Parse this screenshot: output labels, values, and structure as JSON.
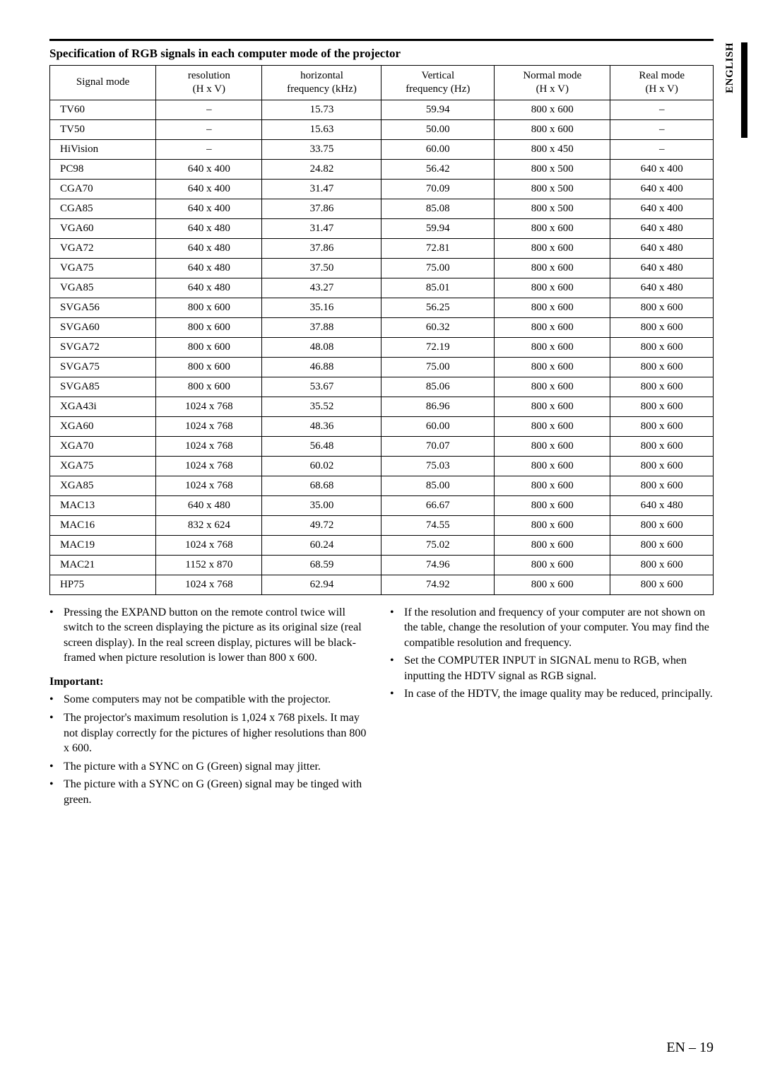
{
  "side_tab": "ENGLISH",
  "spec_title": "Specification of RGB signals in each computer mode of the projector",
  "table": {
    "columns": [
      "Signal mode",
      "resolution\n(H x V)",
      "horizontal\nfrequency (kHz)",
      "Vertical\nfrequency (Hz)",
      "Normal mode\n(H x V)",
      "Real mode\n(H x V)"
    ],
    "widths": [
      "16%",
      "16%",
      "18%",
      "17%",
      "17.5%",
      "15.5%"
    ],
    "rows": [
      [
        "TV60",
        "–",
        "15.73",
        "59.94",
        "800 x 600",
        "–"
      ],
      [
        "TV50",
        "–",
        "15.63",
        "50.00",
        "800 x 600",
        "–"
      ],
      [
        "HiVision",
        "–",
        "33.75",
        "60.00",
        "800 x 450",
        "–"
      ],
      [
        "PC98",
        "640 x 400",
        "24.82",
        "56.42",
        "800 x 500",
        "640 x 400"
      ],
      [
        "CGA70",
        "640 x 400",
        "31.47",
        "70.09",
        "800 x 500",
        "640 x 400"
      ],
      [
        "CGA85",
        "640 x 400",
        "37.86",
        "85.08",
        "800 x 500",
        "640 x 400"
      ],
      [
        "VGA60",
        "640 x 480",
        "31.47",
        "59.94",
        "800 x 600",
        "640 x 480"
      ],
      [
        "VGA72",
        "640 x 480",
        "37.86",
        "72.81",
        "800 x 600",
        "640 x 480"
      ],
      [
        "VGA75",
        "640 x 480",
        "37.50",
        "75.00",
        "800 x 600",
        "640 x 480"
      ],
      [
        "VGA85",
        "640 x 480",
        "43.27",
        "85.01",
        "800 x 600",
        "640 x 480"
      ],
      [
        "SVGA56",
        "800 x 600",
        "35.16",
        "56.25",
        "800 x 600",
        "800 x 600"
      ],
      [
        "SVGA60",
        "800 x 600",
        "37.88",
        "60.32",
        "800 x 600",
        "800 x 600"
      ],
      [
        "SVGA72",
        "800 x 600",
        "48.08",
        "72.19",
        "800 x 600",
        "800 x 600"
      ],
      [
        "SVGA75",
        "800 x 600",
        "46.88",
        "75.00",
        "800 x 600",
        "800 x 600"
      ],
      [
        "SVGA85",
        "800 x 600",
        "53.67",
        "85.06",
        "800 x 600",
        "800 x 600"
      ],
      [
        "XGA43i",
        "1024 x 768",
        "35.52",
        "86.96",
        "800 x 600",
        "800 x 600"
      ],
      [
        "XGA60",
        "1024 x 768",
        "48.36",
        "60.00",
        "800 x 600",
        "800 x 600"
      ],
      [
        "XGA70",
        "1024 x 768",
        "56.48",
        "70.07",
        "800 x 600",
        "800 x 600"
      ],
      [
        "XGA75",
        "1024 x 768",
        "60.02",
        "75.03",
        "800 x 600",
        "800 x 600"
      ],
      [
        "XGA85",
        "1024 x 768",
        "68.68",
        "85.00",
        "800 x 600",
        "800 x 600"
      ],
      [
        "MAC13",
        "640 x 480",
        "35.00",
        "66.67",
        "800 x 600",
        "640 x 480"
      ],
      [
        "MAC16",
        "832 x 624",
        "49.72",
        "74.55",
        "800 x 600",
        "800 x 600"
      ],
      [
        "MAC19",
        "1024 x 768",
        "60.24",
        "75.02",
        "800 x 600",
        "800 x 600"
      ],
      [
        "MAC21",
        "1152 x 870",
        "68.59",
        "74.96",
        "800 x 600",
        "800 x 600"
      ],
      [
        "HP75",
        "1024 x 768",
        "62.94",
        "74.92",
        "800 x 600",
        "800 x 600"
      ]
    ]
  },
  "left_col": {
    "intro": "Pressing the EXPAND button on the remote control twice will switch to the screen displaying the picture as its original size (real screen display).  In the real screen display, pictures will be black-framed when picture resolution is lower than 800 x 600.",
    "important_label": "Important:",
    "bullets": [
      "Some computers may not be compatible with the projector.",
      "The projector's maximum resolution is 1,024 x 768 pixels.  It may not display correctly for the pictures of higher resolutions than 800 x 600.",
      "The picture with a SYNC on G (Green) signal may jitter.",
      "The picture with a SYNC on G (Green) signal may be tinged with green."
    ]
  },
  "right_col": {
    "bullets": [
      "If the resolution and frequency of your computer are not shown on the table, change the resolution of your computer. You may find the compatible resolution and frequency.",
      "Set the COMPUTER INPUT in SIGNAL menu to RGB, when inputting the HDTV signal as RGB signal.",
      "In case of the HDTV, the image quality may be reduced, principally."
    ]
  },
  "page_number": "EN – 19"
}
